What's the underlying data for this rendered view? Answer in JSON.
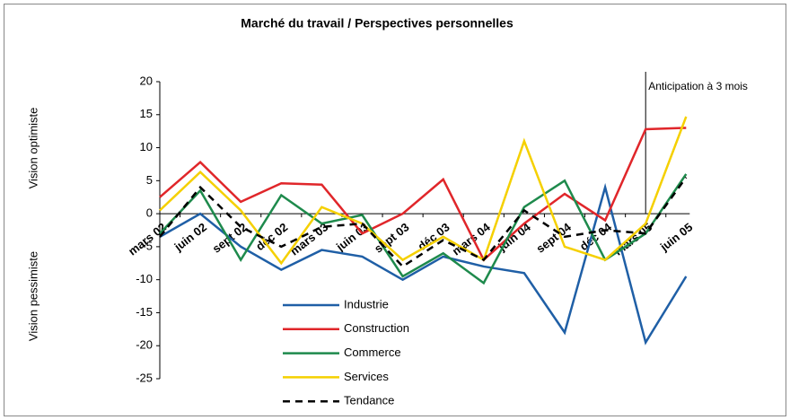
{
  "chart_data": {
    "type": "line",
    "title": "Marché du travail / Perspectives personnelles",
    "y_labels": [
      "Vision pessimiste",
      "Vision optimiste"
    ],
    "annotation": {
      "label": "Anticipation à 3 mois",
      "x": "mars 05"
    },
    "categories": [
      "mars 02",
      "juin 02",
      "sept 02",
      "déc 02",
      "mars 03",
      "juin 03",
      "sept 03",
      "déc 03",
      "mars 04",
      "juin 04",
      "sept 04",
      "déc 04",
      "mars 05",
      "juin 05"
    ],
    "ylim": [
      -25,
      20
    ],
    "yticks": [
      -25,
      -20,
      -15,
      -10,
      -5,
      0,
      5,
      10,
      15,
      20
    ],
    "series": [
      {
        "name": "Industrie",
        "color": "#1f5fa6",
        "style": "solid",
        "values": [
          -3.5,
          0,
          -5,
          -8.5,
          -5.5,
          -6.5,
          -10,
          -6.5,
          -8,
          -9,
          -18,
          4,
          -19.5,
          -9.5
        ]
      },
      {
        "name": "Construction",
        "color": "#e0262a",
        "style": "solid",
        "values": [
          2.5,
          7.8,
          1.8,
          4.6,
          4.4,
          -3,
          0,
          5.2,
          -7,
          -1.5,
          3,
          -1,
          12.8,
          13
        ]
      },
      {
        "name": "Commerce",
        "color": "#1e8a4c",
        "style": "solid",
        "values": [
          -3,
          3.5,
          -7,
          2.8,
          -1.5,
          -0.2,
          -9.5,
          -6,
          -10.5,
          1,
          5,
          -7,
          -3,
          6
        ]
      },
      {
        "name": "Services",
        "color": "#f5d000",
        "style": "solid",
        "values": [
          0.5,
          6.3,
          0.5,
          -7.5,
          1,
          -1.5,
          -7,
          -3.5,
          -7,
          11,
          -5,
          -7,
          -1.5,
          14.7
        ]
      },
      {
        "name": "Tendance",
        "color": "#000000",
        "style": "dashed",
        "values": [
          -3.5,
          4,
          -2,
          -5,
          -2,
          -1.5,
          -8,
          -4,
          -7,
          0.5,
          -3.5,
          -2.5,
          -3,
          5.5
        ]
      }
    ]
  }
}
